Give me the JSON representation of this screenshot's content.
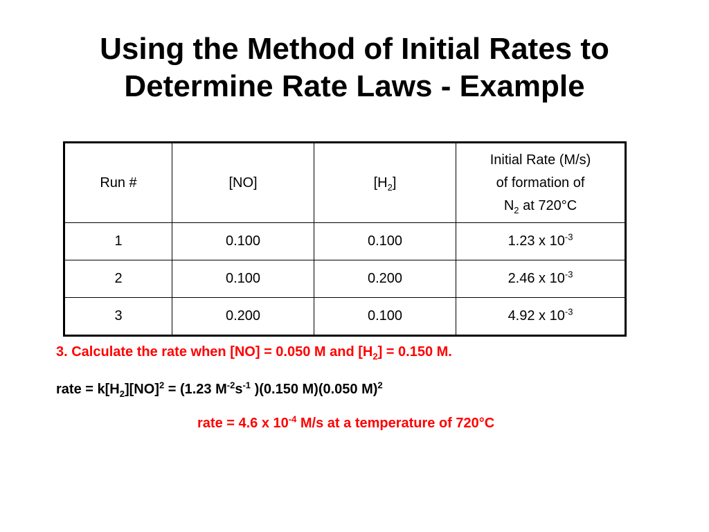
{
  "title": {
    "line1": "Using the Method of Initial Rates to",
    "line2": "Determine Rate Laws - Example"
  },
  "table": {
    "headers": {
      "run": "Run #",
      "no": "[NO]",
      "h2_pre": "[H",
      "h2_sub": "2",
      "h2_post": "]",
      "rate_l1": "Initial Rate (M/s)",
      "rate_l2": "of formation of",
      "rate_l3_pre": "N",
      "rate_l3_sub": "2",
      "rate_l3_post": " at 720°C"
    },
    "rows": [
      {
        "run": "1",
        "no": "0.100",
        "h2": "0.100",
        "rate_base": "1.23 x 10",
        "rate_exp": "-3"
      },
      {
        "run": "2",
        "no": "0.100",
        "h2": "0.200",
        "rate_base": "2.46 x 10",
        "rate_exp": "-3"
      },
      {
        "run": "3",
        "no": "0.200",
        "h2": "0.100",
        "rate_base": "4.92 x 10",
        "rate_exp": "-3"
      }
    ]
  },
  "question": {
    "p1": "3.  Calculate the rate when [NO] = 0.050 M and [H",
    "sub": "2",
    "p2": "] = 0.150 M."
  },
  "equation": {
    "p1": "rate = k[H",
    "sub1": "2",
    "p2": "][NO]",
    "sup1": "2",
    "p3": " = (1.23  M",
    "sup2": "-2",
    "p4": "s",
    "sup3": "-1",
    "p5": " )(0.150 M)(0.050 M)",
    "sup4": "2"
  },
  "answer": {
    "p1": "rate = 4.6 x 10",
    "sup": "-4",
    "p2": " M/s at a temperature of 720°C"
  },
  "colors": {
    "text": "#000000",
    "highlight": "#ff0000"
  }
}
